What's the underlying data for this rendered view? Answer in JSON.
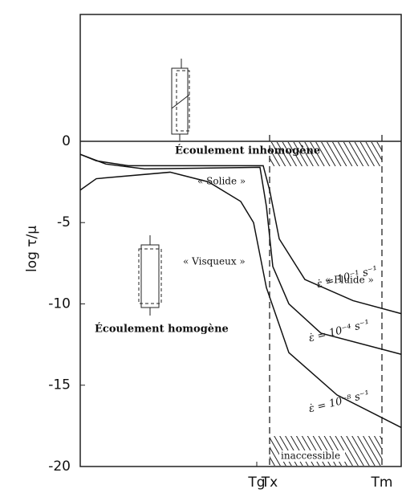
{
  "chart_data": {
    "type": "line",
    "y_label": "log τ/μ",
    "xlim": [
      0,
      100
    ],
    "ylim": [
      -20,
      7.8
    ],
    "yticks": [
      0,
      -5,
      -10,
      -15,
      -20
    ],
    "xticks": [
      {
        "value": 55,
        "label": "Tg"
      },
      {
        "value": 59,
        "label": "Tx"
      },
      {
        "value": 94,
        "label": "Tm"
      }
    ],
    "series": [
      {
        "name": "ε̇ = 10⁻¹ s⁻¹",
        "color": "#111",
        "x": [
          0,
          5,
          15,
          57,
          59,
          62,
          70,
          85,
          100
        ],
        "values": [
          -0.8,
          -1.2,
          -1.5,
          -1.5,
          -3,
          -6,
          -8.5,
          -9.8,
          -10.6
        ]
      },
      {
        "name": "ε̇ = 10⁻⁴ s⁻¹",
        "color": "#111",
        "x": [
          0,
          8,
          20,
          56,
          58,
          60,
          65,
          75,
          100
        ],
        "values": [
          -0.8,
          -1.4,
          -1.7,
          -1.6,
          -4,
          -7.7,
          -10,
          -11.8,
          -13.1
        ]
      },
      {
        "name": "ε̇ = 10⁻⁸ s⁻¹",
        "color": "#111",
        "x": [
          0,
          5,
          28,
          40,
          50,
          54,
          56,
          58,
          65,
          80,
          100
        ],
        "values": [
          -3,
          -2.3,
          -1.9,
          -2.5,
          -3.7,
          -5,
          -7,
          -9,
          -13,
          -15.6,
          -17.6
        ]
      }
    ],
    "annotations": [
      "Écoulement inhomogène",
      "« Solide »",
      "« Visqueux »",
      "« Fluide »",
      "Écoulement homogène",
      "inaccessible"
    ]
  }
}
